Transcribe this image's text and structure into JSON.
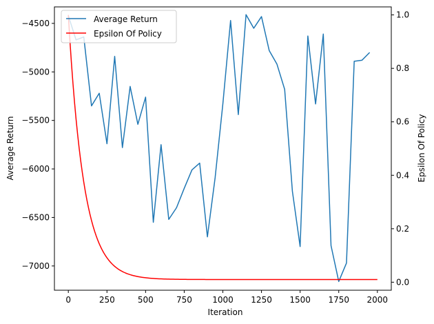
{
  "chart_data": {
    "type": "line",
    "xlabel": "Iteration",
    "ylabel_left": "Average Return",
    "ylabel_right": "Epsilon Of Policy",
    "xlim": [
      -90,
      2090
    ],
    "ylim_left": [
      -7250,
      -4330
    ],
    "ylim_right": [
      -0.03,
      1.03
    ],
    "x_ticks": [
      0,
      250,
      500,
      750,
      1000,
      1250,
      1500,
      1750,
      2000
    ],
    "y_left_ticks": [
      -7000,
      -6500,
      -6000,
      -5500,
      -5000,
      -4500
    ],
    "y_right_ticks": [
      0.0,
      0.2,
      0.4,
      0.6,
      0.8,
      1.0
    ],
    "x_tick_labels": [
      "0",
      "250",
      "500",
      "750",
      "1000",
      "1250",
      "1500",
      "1750",
      "2000"
    ],
    "y_left_tick_labels": [
      "−7000",
      "−6500",
      "−6000",
      "−5500",
      "−5000",
      "−4500"
    ],
    "y_right_tick_labels": [
      "0.0",
      "0.2",
      "0.4",
      "0.6",
      "0.8",
      "1.0"
    ],
    "grid": false,
    "legend": {
      "placement": "upper-left",
      "entries": [
        {
          "label": "Average Return",
          "color": "#1f77b4"
        },
        {
          "label": "Epsilon Of Policy",
          "color": "#ff0000"
        }
      ]
    },
    "series": [
      {
        "name": "Average Return",
        "axis": "left",
        "color": "#1f77b4",
        "x": [
          0,
          50,
          100,
          150,
          200,
          250,
          300,
          350,
          400,
          450,
          500,
          550,
          600,
          650,
          700,
          750,
          800,
          850,
          900,
          950,
          1000,
          1050,
          1100,
          1150,
          1200,
          1250,
          1300,
          1350,
          1400,
          1450,
          1500,
          1550,
          1600,
          1650,
          1700,
          1750,
          1800,
          1850,
          1900,
          1950
        ],
        "y": [
          -4420,
          -4670,
          -4640,
          -5350,
          -5220,
          -5740,
          -4840,
          -5780,
          -5150,
          -5540,
          -5260,
          -6550,
          -5750,
          -6520,
          -6400,
          -6200,
          -6010,
          -5940,
          -6700,
          -6090,
          -5330,
          -4470,
          -5440,
          -4410,
          -4550,
          -4430,
          -4780,
          -4920,
          -5180,
          -6230,
          -6800,
          -4630,
          -5330,
          -4610,
          -6790,
          -7160,
          -6970,
          -4890,
          -4880,
          -4800
        ]
      },
      {
        "name": "Epsilon Of Policy",
        "axis": "right",
        "color": "#ff0000",
        "function": "exp_decay",
        "x_start": 0,
        "x_end": 2000,
        "start_value": 1.0,
        "floor_value": 0.01,
        "decay_rate": 0.01
      }
    ]
  }
}
